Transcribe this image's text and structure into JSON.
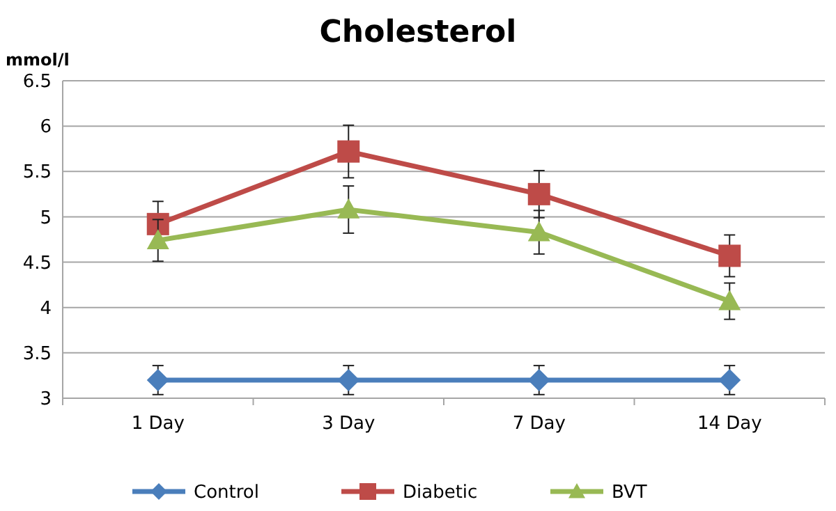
{
  "chart_data": {
    "type": "line",
    "title": "Cholesterol",
    "ylabel": "mmol/l",
    "categories": [
      "1 Day",
      "3 Day",
      "7 Day",
      "14 Day"
    ],
    "series": [
      {
        "name": "Control",
        "color": "#4a7ebb",
        "marker": "diamond",
        "values": [
          3.2,
          3.2,
          3.2,
          3.2
        ],
        "errors": [
          0.16,
          0.16,
          0.16,
          0.16
        ]
      },
      {
        "name": "Diabetic",
        "color": "#be4b48",
        "marker": "square",
        "values": [
          4.92,
          5.72,
          5.25,
          4.57
        ],
        "errors": [
          0.25,
          0.29,
          0.26,
          0.23
        ]
      },
      {
        "name": "BVT",
        "color": "#98b954",
        "marker": "triangle",
        "values": [
          4.74,
          5.08,
          4.83,
          4.07
        ],
        "errors": [
          0.23,
          0.26,
          0.24,
          0.2
        ]
      }
    ],
    "ylim": [
      3,
      6.5
    ],
    "yticks": [
      3,
      3.5,
      4,
      4.5,
      5,
      5.5,
      6,
      6.5
    ],
    "grid": "y",
    "legend": "bottom"
  }
}
